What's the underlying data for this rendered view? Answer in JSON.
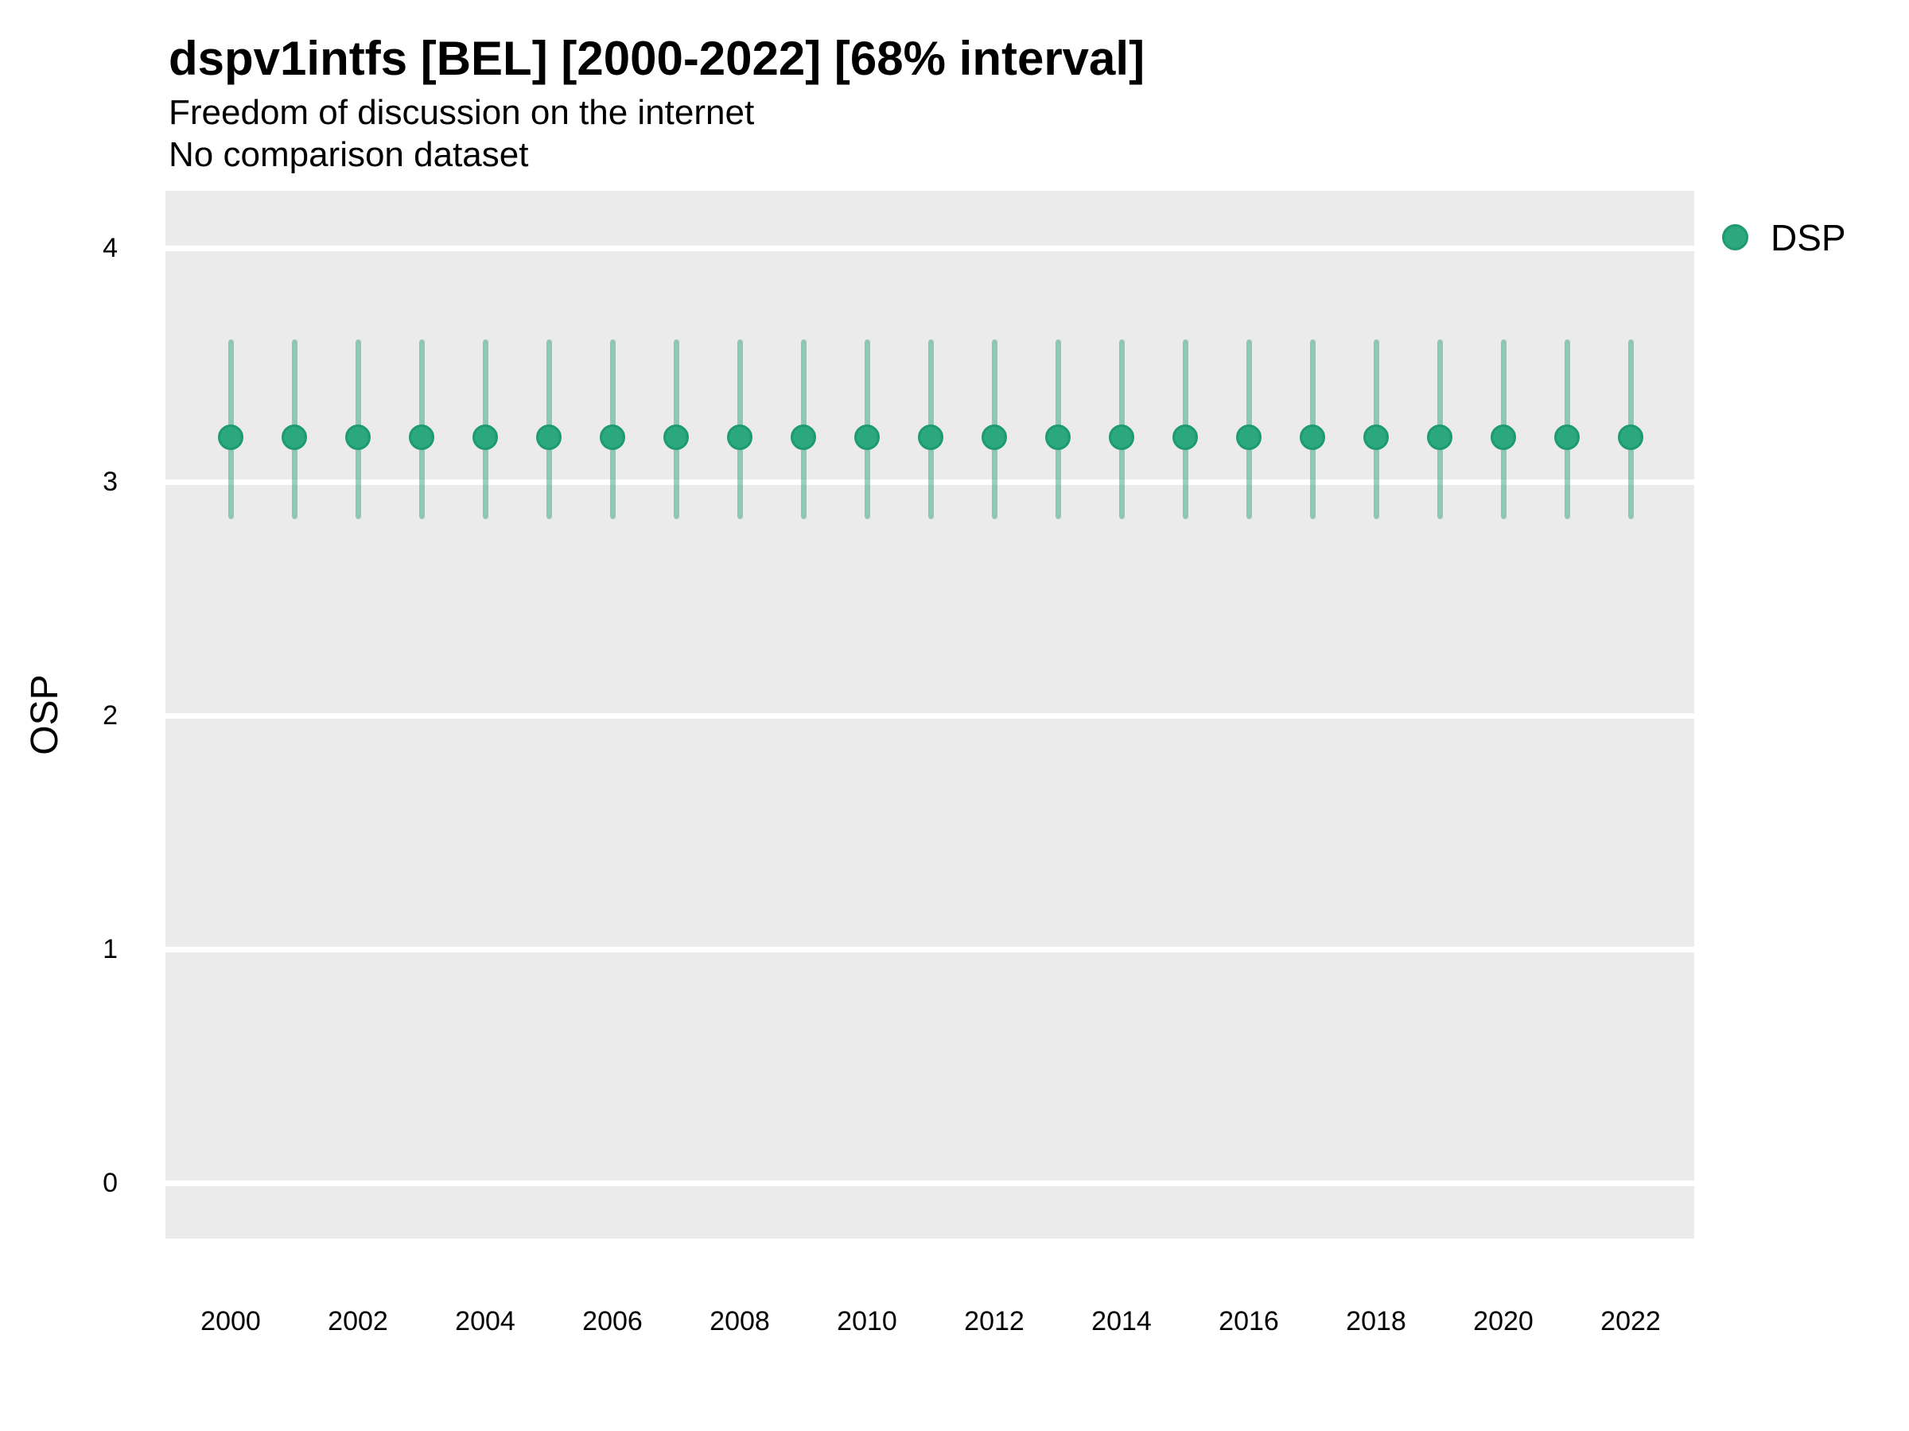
{
  "header": {
    "title": "dspv1intfs [BEL] [2000-2022] [68% interval]",
    "subtitle": "Freedom of discussion on the internet",
    "comparison_note": "No comparison dataset"
  },
  "legend": {
    "items": [
      {
        "label": "DSP",
        "color": "#2BA87D"
      }
    ]
  },
  "colors": {
    "panel_background": "#EBEBEB",
    "gridline": "#FFFFFF",
    "point_fill": "#2BA87D",
    "point_stroke": "#1F9A6C",
    "interval_line": "rgba(43,168,125,0.5)",
    "text": "#000000"
  },
  "chart_data": {
    "type": "scatter",
    "title": "dspv1intfs [BEL] [2000-2022] [68% interval]",
    "subtitle": "Freedom of discussion on the internet",
    "note": "No comparison dataset",
    "xlabel": "",
    "ylabel": "OSP",
    "x": [
      2000,
      2001,
      2002,
      2003,
      2004,
      2005,
      2006,
      2007,
      2008,
      2009,
      2010,
      2011,
      2012,
      2013,
      2014,
      2015,
      2016,
      2017,
      2018,
      2019,
      2020,
      2021,
      2022
    ],
    "series": [
      {
        "name": "DSP",
        "estimate": [
          3.19,
          3.19,
          3.19,
          3.19,
          3.19,
          3.19,
          3.19,
          3.19,
          3.19,
          3.19,
          3.19,
          3.19,
          3.19,
          3.19,
          3.19,
          3.19,
          3.19,
          3.19,
          3.19,
          3.19,
          3.19,
          3.19,
          3.19
        ],
        "lower_68": [
          2.84,
          2.84,
          2.84,
          2.84,
          2.84,
          2.84,
          2.84,
          2.84,
          2.84,
          2.84,
          2.84,
          2.84,
          2.84,
          2.84,
          2.84,
          2.84,
          2.84,
          2.84,
          2.84,
          2.84,
          2.84,
          2.84,
          2.84
        ],
        "upper_68": [
          3.61,
          3.61,
          3.61,
          3.61,
          3.61,
          3.61,
          3.61,
          3.61,
          3.61,
          3.61,
          3.61,
          3.61,
          3.61,
          3.61,
          3.61,
          3.61,
          3.61,
          3.61,
          3.61,
          3.61,
          3.61,
          3.61,
          3.61
        ]
      }
    ],
    "ylim": [
      0,
      4
    ],
    "yticks": [
      4,
      3,
      2,
      1,
      0
    ],
    "xticks": [
      2000,
      2002,
      2004,
      2006,
      2008,
      2010,
      2012,
      2014,
      2016,
      2018,
      2020,
      2022
    ],
    "grid": "horizontal-major-only",
    "legend_position": "right-top",
    "interval_label": "68% interval"
  }
}
